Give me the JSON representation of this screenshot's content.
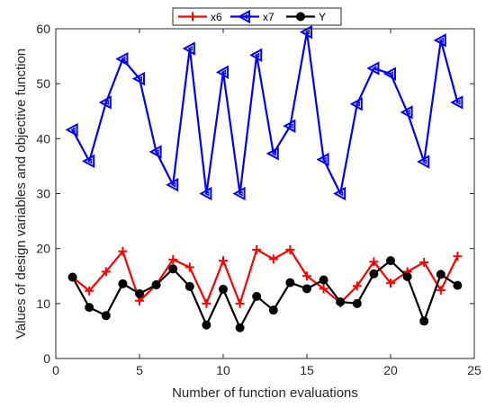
{
  "chart_data": {
    "type": "line",
    "xlabel": "Number of function evaluations",
    "ylabel": "Values of design variables and objective function",
    "xlim": [
      0,
      25
    ],
    "ylim": [
      0,
      60
    ],
    "xticks": [
      0,
      5,
      10,
      15,
      20,
      25
    ],
    "yticks": [
      0,
      10,
      20,
      30,
      40,
      50,
      60
    ],
    "grid": false,
    "legend_position": "top-center",
    "x": [
      1,
      2,
      3,
      4,
      5,
      6,
      7,
      8,
      9,
      10,
      11,
      12,
      13,
      14,
      15,
      16,
      17,
      18,
      19,
      20,
      21,
      22,
      23,
      24
    ],
    "series": [
      {
        "name": "x6",
        "color": "#ff0000",
        "marker": "plus",
        "values": [
          14.8,
          12.3,
          15.8,
          19.5,
          10.5,
          13.4,
          18.0,
          16.6,
          10.0,
          17.8,
          10.0,
          19.8,
          18.1,
          19.8,
          15.0,
          12.7,
          10.1,
          13.2,
          17.6,
          13.7,
          15.8,
          17.5,
          12.4,
          18.6
        ]
      },
      {
        "name": "x7",
        "color": "#0000ff",
        "marker": "triangle-left",
        "values": [
          41.6,
          35.9,
          46.6,
          54.5,
          50.9,
          37.6,
          31.6,
          56.4,
          30.0,
          52.1,
          30.0,
          55.2,
          37.3,
          42.3,
          59.4,
          36.2,
          30.0,
          46.3,
          52.8,
          51.8,
          44.8,
          35.8,
          57.9,
          46.6
        ]
      },
      {
        "name": "Y",
        "color": "#000000",
        "marker": "circle",
        "values": [
          14.8,
          9.3,
          7.8,
          13.6,
          11.8,
          13.4,
          16.3,
          13.1,
          6.1,
          12.6,
          5.6,
          11.3,
          8.8,
          13.8,
          12.7,
          14.3,
          10.3,
          10.0,
          15.4,
          17.8,
          14.9,
          6.8,
          15.3,
          13.3
        ]
      }
    ]
  }
}
